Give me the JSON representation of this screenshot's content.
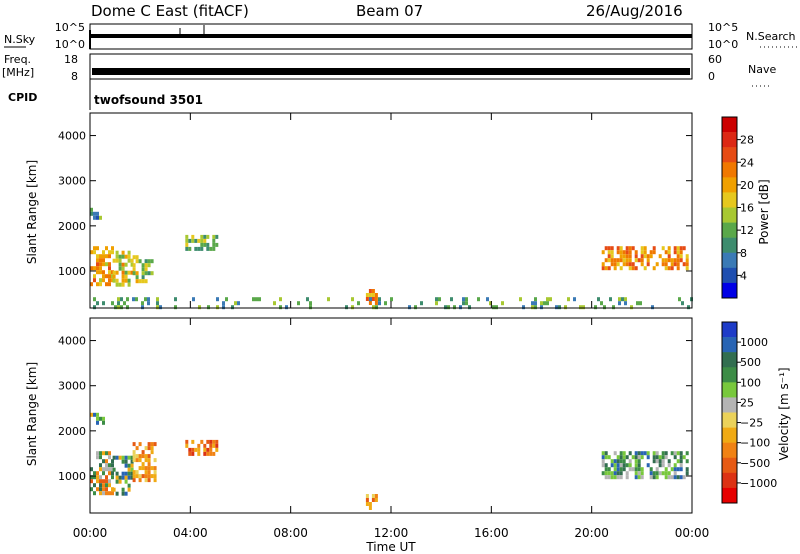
{
  "header": {
    "station": "Dome C East (fitACF)",
    "beam": "Beam 07",
    "date": "26/Aug/2016"
  },
  "sky_panel": {
    "left_label": "N.Sky",
    "right_label": "N.Search",
    "y_ticks_left": [
      "10^5",
      "10^0"
    ],
    "y_ticks_right": [
      "10^5",
      "10^0"
    ]
  },
  "freq_panel": {
    "left_label_top": "Freq.",
    "left_label_bottom": "[MHz]",
    "right_label": "Nave",
    "y_ticks_left": [
      "18",
      "8"
    ],
    "y_ticks_right": [
      "60",
      "0"
    ]
  },
  "cpid": {
    "label": "CPID",
    "value": "twofsound 3501"
  },
  "chart_data": [
    {
      "type": "heatmap",
      "quantity": "power",
      "ylabel": "Slant Range [km]",
      "yticks": [
        "1000",
        "2000",
        "3000",
        "4000"
      ],
      "ylim": [
        180,
        4500
      ],
      "xlim_hours": [
        0,
        24
      ],
      "colorbar": {
        "label": "Power [dB]",
        "ticks": [
          "4",
          "8",
          "12",
          "16",
          "20",
          "24",
          "28"
        ],
        "range": [
          0,
          32
        ],
        "colors": [
          "#0000e6",
          "#1f4fb0",
          "#3a7ab5",
          "#3d8c6e",
          "#5aa84a",
          "#a8c832",
          "#e6c81e",
          "#f0a000",
          "#f07800",
          "#e64b14",
          "#dc2814",
          "#cc0000"
        ]
      },
      "echo_regions": [
        {
          "t": [
            0.0,
            0.9
          ],
          "r": [
            700,
            1550
          ],
          "v": 20
        },
        {
          "t": [
            0.9,
            1.7
          ],
          "r": [
            700,
            1450
          ],
          "v": 17
        },
        {
          "t": [
            1.7,
            2.5
          ],
          "r": [
            800,
            1350
          ],
          "v": 15
        },
        {
          "t": [
            0.0,
            0.6
          ],
          "r": [
            2150,
            2400
          ],
          "v": 9
        },
        {
          "t": [
            3.8,
            5.0
          ],
          "r": [
            1450,
            1800
          ],
          "v": 13
        },
        {
          "t": [
            11.0,
            11.4
          ],
          "r": [
            280,
            600
          ],
          "v": 22
        },
        {
          "t": [
            20.4,
            23.8
          ],
          "r": [
            1050,
            1550
          ],
          "v": 21
        },
        {
          "t": [
            0.0,
            24.0
          ],
          "r": [
            180,
            420
          ],
          "v": 11
        }
      ]
    },
    {
      "type": "heatmap",
      "quantity": "velocity",
      "ylabel": "Slant Range [km]",
      "yticks": [
        "1000",
        "2000",
        "3000",
        "4000"
      ],
      "ylim": [
        180,
        4500
      ],
      "xlim_hours": [
        0,
        24
      ],
      "xticks": [
        "00:00",
        "04:00",
        "08:00",
        "12:00",
        "16:00",
        "20:00",
        "00:00"
      ],
      "xlabel": "Time UT",
      "colorbar": {
        "label": "Velocity [m s⁻¹]",
        "ticks": [
          "1000",
          "500",
          "100",
          "25",
          "−25",
          "−100",
          "−500",
          "−1000"
        ],
        "colors": [
          "#1e3cc8",
          "#2864b4",
          "#326e50",
          "#3c8c46",
          "#78c83c",
          "#b4b4b4",
          "#ebd25a",
          "#f0aa14",
          "#f08214",
          "#e65a14",
          "#dc3214",
          "#e60000"
        ]
      },
      "echo_regions": [
        {
          "t": [
            0.0,
            0.9
          ],
          "r": [
            600,
            1550
          ],
          "v": "mixed-orange-green"
        },
        {
          "t": [
            0.9,
            1.7
          ],
          "r": [
            600,
            1450
          ],
          "v": "green"
        },
        {
          "t": [
            1.7,
            2.6
          ],
          "r": [
            900,
            1750
          ],
          "v": "orange"
        },
        {
          "t": [
            0.0,
            0.5
          ],
          "r": [
            2150,
            2400
          ],
          "v": "green"
        },
        {
          "t": [
            3.8,
            5.0
          ],
          "r": [
            1450,
            1800
          ],
          "v": "orange-red"
        },
        {
          "t": [
            11.0,
            11.4
          ],
          "r": [
            280,
            600
          ],
          "v": "orange"
        },
        {
          "t": [
            20.4,
            23.8
          ],
          "r": [
            950,
            1550
          ],
          "v": "green-blue"
        }
      ]
    }
  ]
}
